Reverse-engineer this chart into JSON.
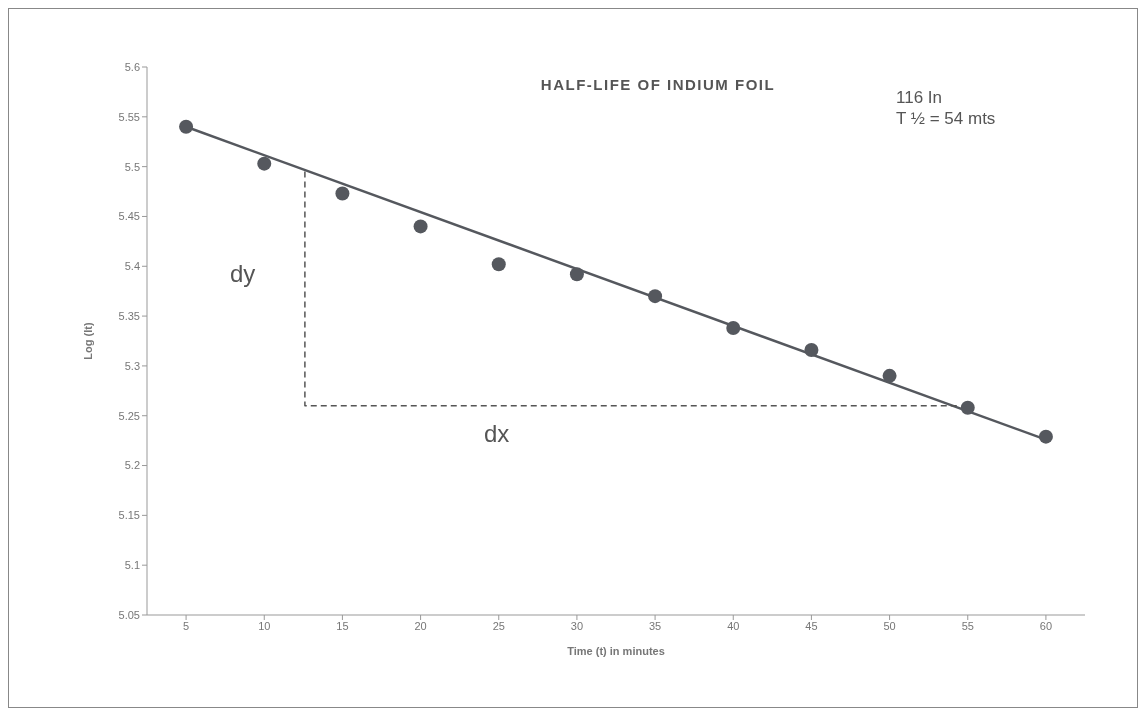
{
  "chart_data": {
    "type": "scatter",
    "title": "HALF-LIFE OF INDIUM FOIL",
    "xlabel": "Time (t) in minutes",
    "ylabel": "Log (It)",
    "x": [
      5,
      10,
      15,
      20,
      25,
      30,
      35,
      40,
      45,
      50,
      55,
      60
    ],
    "series": [
      {
        "color": "#55585e",
        "marker": "circle",
        "values": [
          5.54,
          5.503,
          5.473,
          5.44,
          5.402,
          5.392,
          5.37,
          5.338,
          5.316,
          5.29,
          5.258,
          5.229
        ]
      },
      {
        "type": "line",
        "color": "#55585e",
        "marker": "none",
        "line_style": "solid",
        "x": [
          5,
          60
        ],
        "values": [
          5.54,
          5.226
        ]
      },
      {
        "type": "line",
        "color": "#555555",
        "marker": "none",
        "line_style": "dashed",
        "x": [
          12.6,
          12.6,
          54.3
        ],
        "values": [
          5.495,
          5.26,
          5.26
        ]
      }
    ],
    "xlim": [
      2.5,
      62.5
    ],
    "xticks": [
      5,
      10,
      15,
      20,
      25,
      30,
      35,
      40,
      45,
      50,
      55,
      60
    ],
    "ylim": [
      5.05,
      5.6
    ],
    "yticks": [
      5.05,
      5.1,
      5.15,
      5.2,
      5.25,
      5.3,
      5.35,
      5.4,
      5.45,
      5.5,
      5.55,
      5.6
    ],
    "grid": false,
    "annotations": [
      "dy",
      "dx",
      "116 In",
      "T ½ = 54 mts"
    ]
  }
}
